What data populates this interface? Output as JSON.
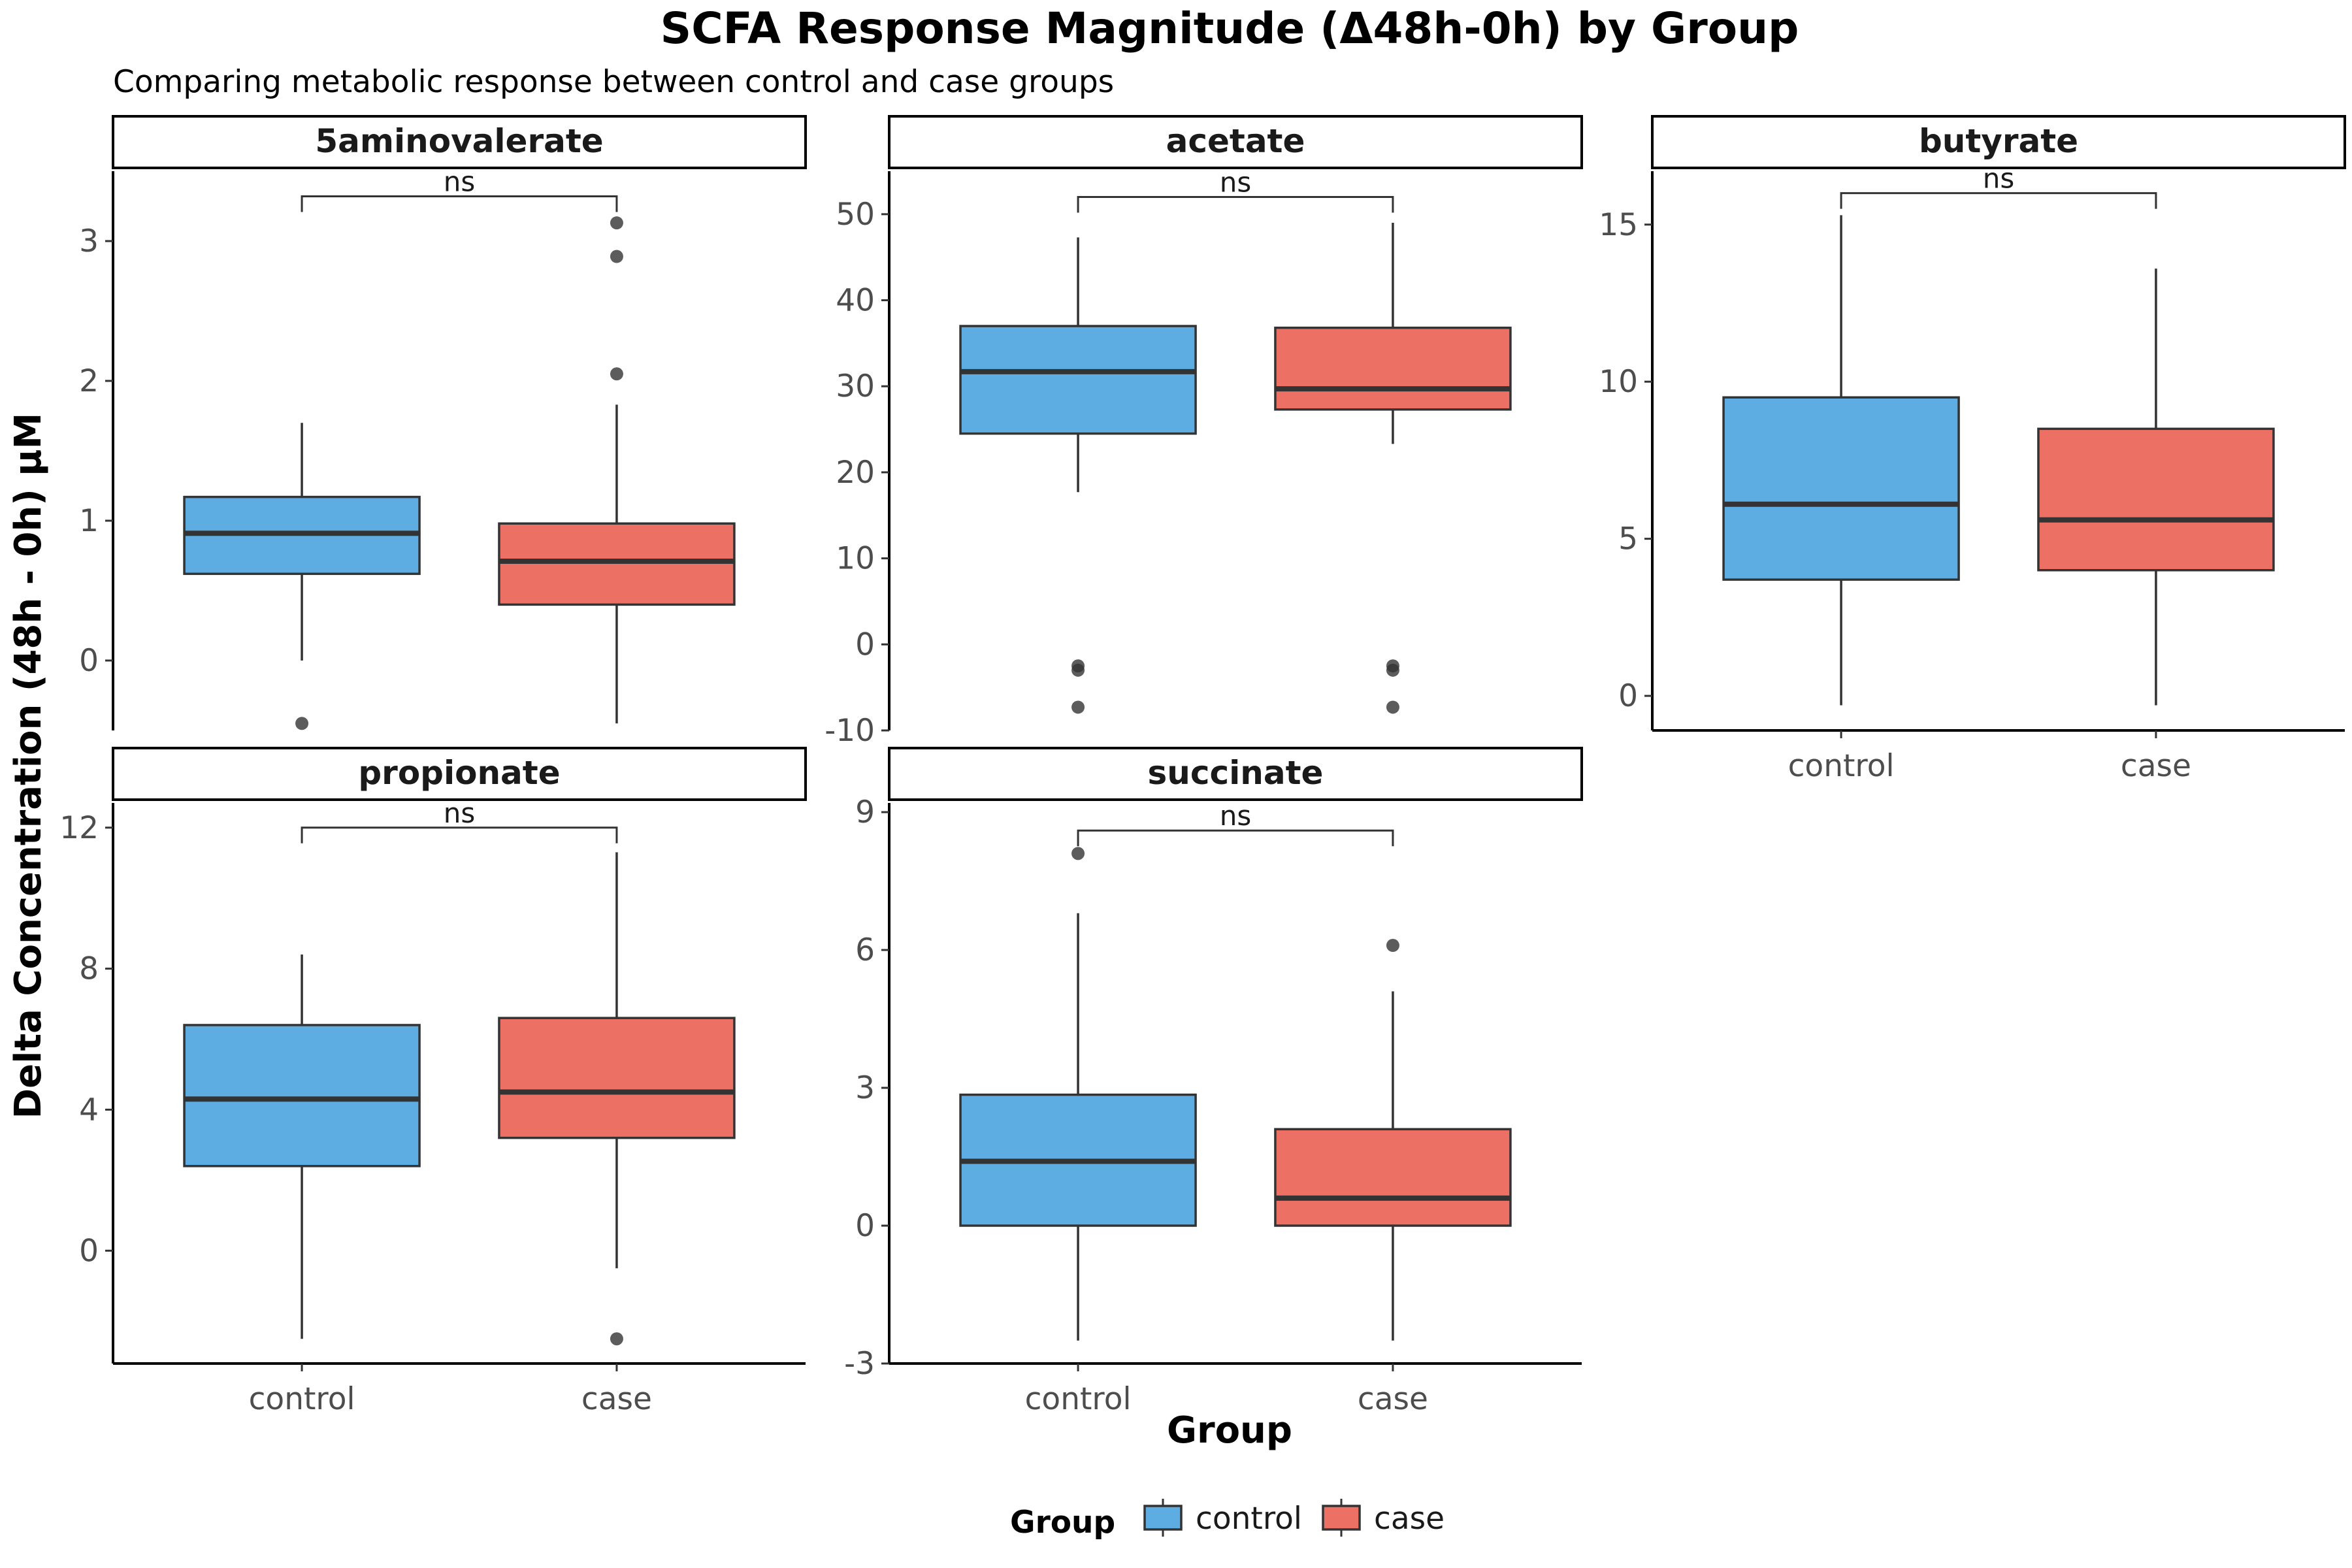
{
  "chart_data": {
    "type": "box",
    "title": "SCFA Response Magnitude (Δ48h-0h) by Group",
    "subtitle": "Comparing metabolic response between control and case groups",
    "xlabel": "Group",
    "ylabel": "Delta Concentration (48h - 0h) μM",
    "categories": [
      "control",
      "case"
    ],
    "colors": {
      "control": "#5DADE2",
      "case": "#EC7063"
    },
    "legend": {
      "title": "Group",
      "position": "bottom",
      "entries": [
        "control",
        "case"
      ]
    },
    "grid": false,
    "panels": [
      {
        "name": "5aminovalerate",
        "ylim": [
          -0.5,
          3.5
        ],
        "yticks": [
          0,
          1,
          2,
          3
        ],
        "ytick_labels": [
          "0",
          "1",
          "2",
          "3"
        ],
        "significance": "ns",
        "bracket_y": 3.32,
        "boxes": {
          "control": {
            "whisker_low": 0.0,
            "q1": 0.62,
            "median": 0.91,
            "q3": 1.17,
            "whisker_high": 1.7,
            "outliers": [
              -0.45
            ]
          },
          "case": {
            "whisker_low": -0.45,
            "q1": 0.4,
            "median": 0.71,
            "q3": 0.98,
            "whisker_high": 1.83,
            "outliers": [
              2.05,
              2.89,
              3.13
            ]
          }
        }
      },
      {
        "name": "acetate",
        "ylim": [
          -10,
          55
        ],
        "yticks": [
          -10,
          0,
          10,
          20,
          30,
          40,
          50
        ],
        "ytick_labels": [
          "-10",
          "0",
          "10",
          "20",
          "30",
          "40",
          "50"
        ],
        "significance": "ns",
        "bracket_y": 52,
        "boxes": {
          "control": {
            "whisker_low": 17.7,
            "q1": 24.5,
            "median": 31.7,
            "q3": 37.0,
            "whisker_high": 47.3,
            "outliers": [
              -2.5,
              -3.0,
              -7.3
            ]
          },
          "case": {
            "whisker_low": 23.3,
            "q1": 27.3,
            "median": 29.7,
            "q3": 36.8,
            "whisker_high": 49.0,
            "outliers": [
              -2.5,
              -3.0,
              -7.3
            ]
          }
        }
      },
      {
        "name": "butyrate",
        "ylim": [
          -1.1,
          16.7
        ],
        "yticks": [
          0,
          5,
          10,
          15
        ],
        "ytick_labels": [
          "0",
          "5",
          "10",
          "15"
        ],
        "significance": "ns",
        "bracket_y": 16.0,
        "boxes": {
          "control": {
            "whisker_low": -0.3,
            "q1": 3.7,
            "median": 6.1,
            "q3": 9.5,
            "whisker_high": 15.3,
            "outliers": []
          },
          "case": {
            "whisker_low": -0.3,
            "q1": 4.0,
            "median": 5.6,
            "q3": 8.5,
            "whisker_high": 13.6,
            "outliers": []
          }
        }
      },
      {
        "name": "propionate",
        "ylim": [
          -3.2,
          12.7
        ],
        "yticks": [
          0,
          4,
          8,
          12
        ],
        "ytick_labels": [
          "0",
          "4",
          "8",
          "12"
        ],
        "significance": "ns",
        "bracket_y": 12.0,
        "boxes": {
          "control": {
            "whisker_low": -2.5,
            "q1": 2.4,
            "median": 4.3,
            "q3": 6.4,
            "whisker_high": 8.4,
            "outliers": []
          },
          "case": {
            "whisker_low": -0.5,
            "q1": 3.2,
            "median": 4.5,
            "q3": 6.6,
            "whisker_high": 11.3,
            "outliers": [
              -2.5
            ]
          }
        }
      },
      {
        "name": "succinate",
        "ylim": [
          -3,
          9.2
        ],
        "yticks": [
          -3,
          0,
          3,
          6,
          9
        ],
        "ytick_labels": [
          "-3",
          "0",
          "3",
          "6",
          "9"
        ],
        "significance": "ns",
        "bracket_y": 8.6,
        "boxes": {
          "control": {
            "whisker_low": -2.5,
            "q1": 0.0,
            "median": 1.4,
            "q3": 2.85,
            "whisker_high": 6.8,
            "outliers": [
              8.1
            ]
          },
          "case": {
            "whisker_low": -2.5,
            "q1": 0.0,
            "median": 0.6,
            "q3": 2.1,
            "whisker_high": 5.1,
            "outliers": [
              6.1
            ]
          }
        }
      }
    ]
  }
}
